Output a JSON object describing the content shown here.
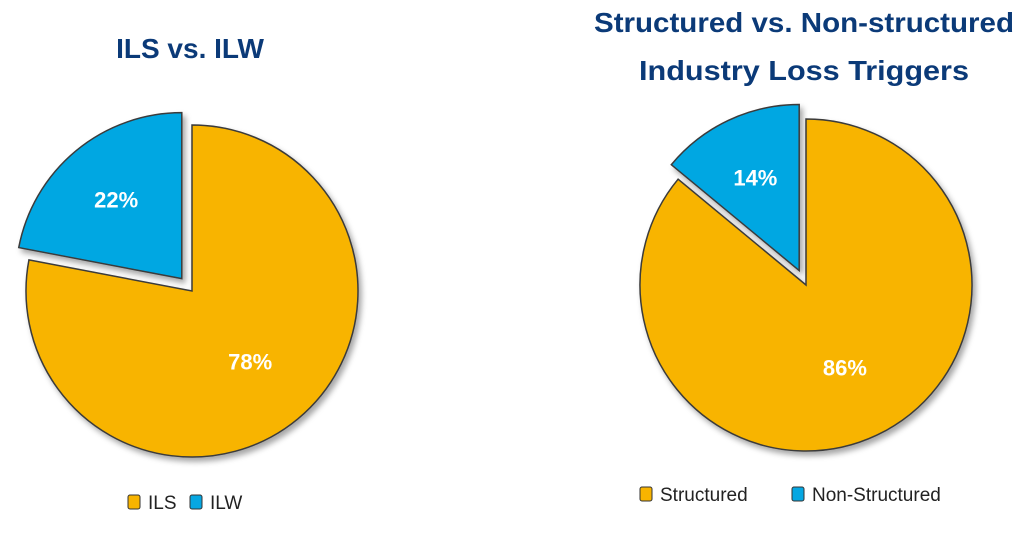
{
  "chart_data": [
    {
      "type": "pie",
      "title": "ILS vs. ILW",
      "categories": [
        "ILS",
        "ILW"
      ],
      "values": [
        78,
        22
      ],
      "data_labels": [
        "78%",
        "22%"
      ],
      "exploded": [
        "ILW"
      ],
      "colors": [
        "#F8B400",
        "#06A7E2"
      ],
      "legend": "bottom"
    },
    {
      "type": "pie",
      "title_lines": [
        "Structured vs. Non-structured",
        "Industry Loss Triggers"
      ],
      "categories": [
        "Structured",
        "Non-Structured"
      ],
      "values": [
        86,
        14
      ],
      "data_labels": [
        "86%",
        "14%"
      ],
      "exploded": [
        "Non-Structured"
      ],
      "colors": [
        "#F8B400",
        "#06A7E2"
      ],
      "legend": "bottom"
    }
  ]
}
